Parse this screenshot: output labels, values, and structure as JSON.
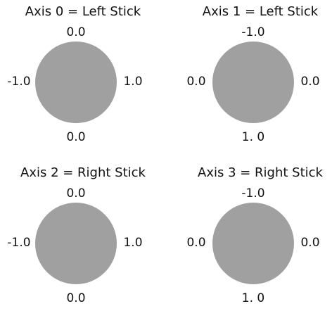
{
  "stick_color": "#a0a0a0",
  "panels": [
    {
      "title": "Axis 0 = Left Stick",
      "top": "0.0",
      "bottom": "0.0",
      "left": "-1.0",
      "right": "1.0"
    },
    {
      "title": "Axis 1 = Left Stick",
      "top": "-1.0",
      "bottom": "1. 0",
      "left": "0.0",
      "right": "0.0"
    },
    {
      "title": "Axis 2 = Right Stick",
      "top": "0.0",
      "bottom": "0.0",
      "left": "-1.0",
      "right": "1.0"
    },
    {
      "title": "Axis 3 = Right Stick",
      "top": "-1.0",
      "bottom": "1. 0",
      "left": "0.0",
      "right": "0.0"
    }
  ]
}
